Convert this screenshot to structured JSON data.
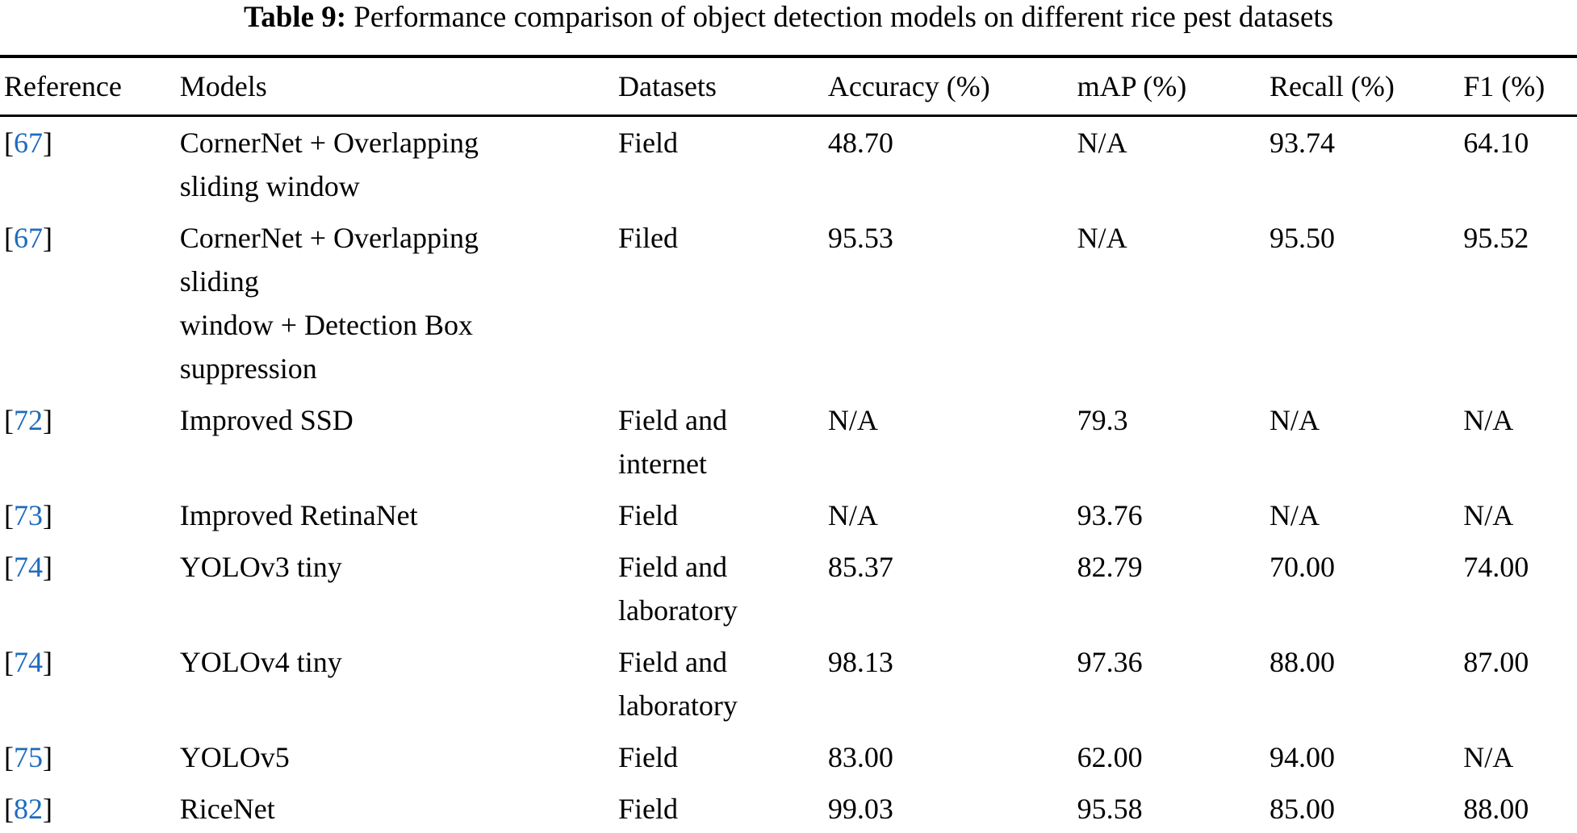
{
  "title": {
    "label": "Table 9:",
    "text": " Performance comparison of object detection models on different rice pest datasets"
  },
  "table": {
    "columns": {
      "reference": "Reference",
      "models": "Models",
      "datasets": "Datasets",
      "accuracy": "Accuracy (%)",
      "map": "mAP (%)",
      "recall": "Recall (%)",
      "f1": "F1 (%)"
    },
    "ref_bracket_open": "[",
    "ref_bracket_close": "]",
    "link_color": "#1e6bbf",
    "rows": [
      {
        "ref": "67",
        "models": "CornerNet + Overlapping\nsliding window",
        "datasets": "Field",
        "accuracy": "48.70",
        "map": "N/A",
        "recall": "93.74",
        "f1": "64.10"
      },
      {
        "ref": "67",
        "models": "CornerNet + Overlapping\nsliding\nwindow + Detection Box\nsuppression",
        "datasets": "Filed",
        "accuracy": "95.53",
        "map": "N/A",
        "recall": "95.50",
        "f1": "95.52"
      },
      {
        "ref": "72",
        "models": "Improved SSD",
        "datasets": "Field and\ninternet",
        "accuracy": "N/A",
        "map": "79.3",
        "recall": "N/A",
        "f1": "N/A"
      },
      {
        "ref": "73",
        "models": "Improved RetinaNet",
        "datasets": "Field",
        "accuracy": "N/A",
        "map": "93.76",
        "recall": "N/A",
        "f1": "N/A"
      },
      {
        "ref": "74",
        "models": "YOLOv3 tiny",
        "datasets": "Field and\nlaboratory",
        "accuracy": "85.37",
        "map": "82.79",
        "recall": "70.00",
        "f1": "74.00"
      },
      {
        "ref": "74",
        "models": "YOLOv4 tiny",
        "datasets": "Field and\nlaboratory",
        "accuracy": "98.13",
        "map": "97.36",
        "recall": "88.00",
        "f1": "87.00"
      },
      {
        "ref": "75",
        "models": "YOLOv5",
        "datasets": "Field",
        "accuracy": "83.00",
        "map": "62.00",
        "recall": "94.00",
        "f1": "N/A"
      },
      {
        "ref": "82",
        "models": "RiceNet",
        "datasets": "Field",
        "accuracy": "99.03",
        "map": "95.58",
        "recall": "85.00",
        "f1": "88.00"
      }
    ]
  }
}
